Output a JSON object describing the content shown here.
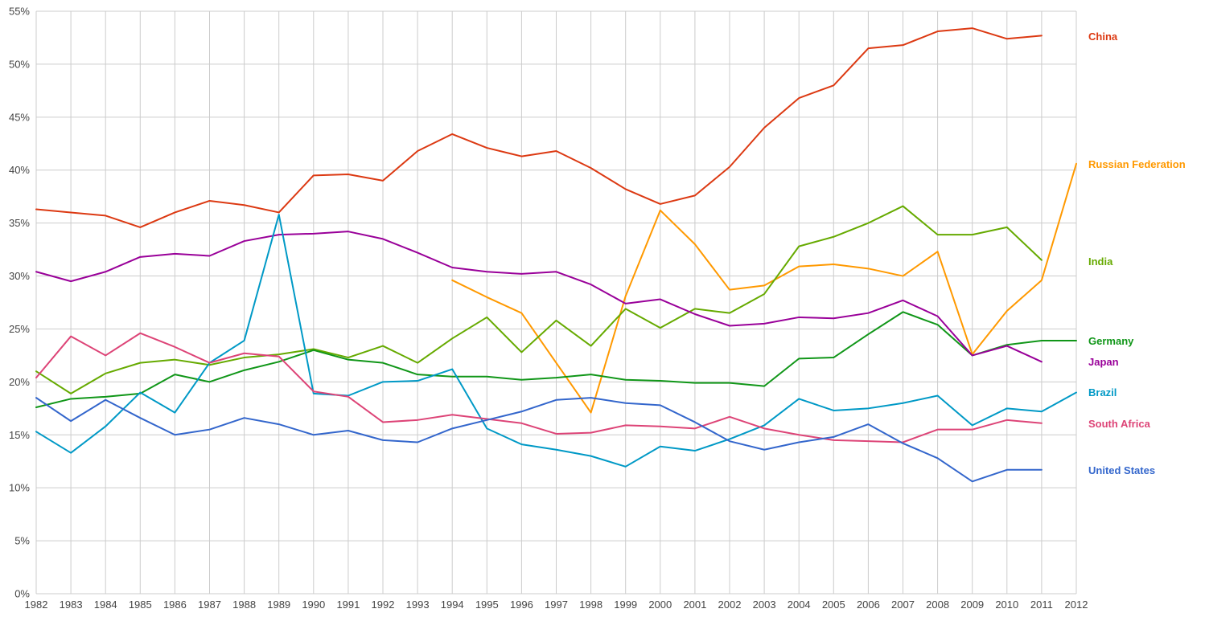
{
  "chart_data": {
    "type": "line",
    "title": "",
    "xlabel": "",
    "ylabel": "",
    "ylim": [
      0,
      55
    ],
    "y_ticks": [
      0,
      5,
      10,
      15,
      20,
      25,
      30,
      35,
      40,
      45,
      50,
      55
    ],
    "y_tick_suffix": "%",
    "grid": true,
    "legend_placement": "right",
    "x": [
      1982,
      1983,
      1984,
      1985,
      1986,
      1987,
      1988,
      1989,
      1990,
      1991,
      1992,
      1993,
      1994,
      1995,
      1996,
      1997,
      1998,
      1999,
      2000,
      2001,
      2002,
      2003,
      2004,
      2005,
      2006,
      2007,
      2008,
      2009,
      2010,
      2011,
      2012
    ],
    "series": [
      {
        "name": "China",
        "color": "#dc3912",
        "values": [
          36.3,
          36.0,
          35.7,
          34.6,
          36.0,
          37.1,
          36.7,
          36.0,
          39.5,
          39.6,
          39.0,
          41.8,
          43.4,
          42.1,
          41.3,
          41.8,
          40.2,
          38.2,
          36.8,
          37.6,
          40.3,
          44.0,
          46.8,
          48.0,
          51.5,
          51.8,
          53.1,
          53.4,
          52.4,
          52.7,
          null
        ]
      },
      {
        "name": "Russian Federation",
        "color": "#ff9900",
        "values": [
          null,
          null,
          null,
          null,
          null,
          null,
          null,
          null,
          null,
          null,
          null,
          null,
          29.6,
          28.0,
          26.5,
          21.8,
          17.1,
          28.1,
          36.2,
          33.0,
          28.7,
          29.1,
          30.9,
          31.1,
          30.7,
          30.0,
          32.3,
          22.6,
          26.7,
          29.6,
          40.6
        ]
      },
      {
        "name": "India",
        "color": "#66aa00",
        "values": [
          21.0,
          18.9,
          20.8,
          21.8,
          22.1,
          21.6,
          22.3,
          22.6,
          23.1,
          22.3,
          23.4,
          21.8,
          24.1,
          26.1,
          22.8,
          25.8,
          23.4,
          26.9,
          25.1,
          26.9,
          26.5,
          28.3,
          32.8,
          33.7,
          35.0,
          36.6,
          33.9,
          33.9,
          34.6,
          31.5,
          null
        ]
      },
      {
        "name": "Germany",
        "color": "#109618",
        "values": [
          17.6,
          18.4,
          18.6,
          18.9,
          20.7,
          20.0,
          21.1,
          21.9,
          23.0,
          22.1,
          21.8,
          20.7,
          20.5,
          20.5,
          20.2,
          20.4,
          20.7,
          20.2,
          20.1,
          19.9,
          19.9,
          19.6,
          22.2,
          22.3,
          24.5,
          26.6,
          25.4,
          22.5,
          23.5,
          23.9,
          23.9
        ]
      },
      {
        "name": "Japan",
        "color": "#990099",
        "values": [
          30.4,
          29.5,
          30.4,
          31.8,
          32.1,
          31.9,
          33.3,
          33.9,
          34.0,
          34.2,
          33.5,
          32.2,
          30.8,
          30.4,
          30.2,
          30.4,
          29.2,
          27.4,
          27.8,
          26.4,
          25.3,
          25.5,
          26.1,
          26.0,
          26.5,
          27.7,
          26.2,
          22.5,
          23.4,
          21.9,
          null
        ]
      },
      {
        "name": "Brazil",
        "color": "#0099c6",
        "values": [
          15.3,
          13.3,
          15.8,
          19.0,
          17.1,
          21.8,
          23.9,
          35.8,
          18.9,
          18.7,
          20.0,
          20.1,
          21.2,
          15.6,
          14.1,
          13.6,
          13.0,
          12.0,
          13.9,
          13.5,
          14.6,
          15.9,
          18.4,
          17.3,
          17.5,
          18.0,
          18.7,
          15.9,
          17.5,
          17.2,
          19.0
        ]
      },
      {
        "name": "South Africa",
        "color": "#dd4477",
        "values": [
          20.4,
          24.3,
          22.5,
          24.6,
          23.3,
          21.8,
          22.7,
          22.4,
          19.1,
          18.6,
          16.2,
          16.4,
          16.9,
          16.5,
          16.1,
          15.1,
          15.2,
          15.9,
          15.8,
          15.6,
          16.7,
          15.6,
          15.0,
          14.5,
          14.4,
          14.3,
          15.5,
          15.5,
          16.4,
          16.1,
          null
        ]
      },
      {
        "name": "United States",
        "color": "#3366cc",
        "values": [
          18.5,
          16.3,
          18.3,
          16.6,
          15.0,
          15.5,
          16.6,
          16.0,
          15.0,
          15.4,
          14.5,
          14.3,
          15.6,
          16.4,
          17.2,
          18.3,
          18.5,
          18.0,
          17.8,
          16.2,
          14.4,
          13.6,
          14.3,
          14.8,
          16.0,
          14.2,
          12.8,
          10.6,
          11.7,
          11.7,
          null
        ]
      }
    ]
  }
}
